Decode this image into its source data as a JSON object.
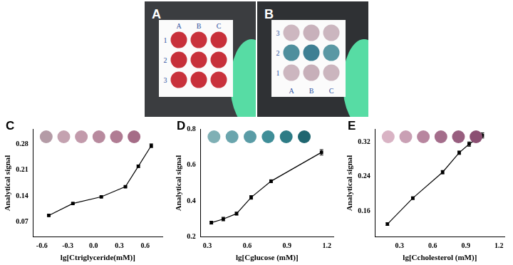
{
  "photos": [
    {
      "panel": "A",
      "column_labels": [
        "A",
        "B",
        "C"
      ],
      "row_labels": [
        "1",
        "2",
        "3"
      ],
      "wells": [
        [
          "#c8303a",
          "#c9323c",
          "#c8303a"
        ],
        [
          "#c62f39",
          "#c8313b",
          "#c7303a"
        ],
        [
          "#c8313b",
          "#c8303a",
          "#c9323c"
        ]
      ]
    },
    {
      "panel": "B",
      "column_labels": [
        "A",
        "B",
        "C"
      ],
      "row_labels": [
        "3",
        "2",
        "1"
      ],
      "wells": [
        [
          "#cdb7c0",
          "#c8b1bb",
          "#cbb6bf"
        ],
        [
          "#4f8f9d",
          "#3e7f93",
          "#5a98a4"
        ],
        [
          "#ccb6bf",
          "#c7afb9",
          "#cbb5be"
        ]
      ]
    }
  ],
  "chart_data": [
    {
      "panel": "C",
      "type": "line",
      "x_label": "lg[Ctriglyceride(mM)]",
      "y_label": "Analytical signal",
      "x": [
        -0.52,
        -0.24,
        0.09,
        0.37,
        0.52,
        0.67
      ],
      "series": [
        {
          "name": "triglyceride",
          "color": "#000000",
          "marker": "square",
          "line_style": "solid",
          "values": [
            0.088,
            0.12,
            0.138,
            0.165,
            0.22,
            0.275
          ],
          "errors": [
            0.002,
            0.002,
            0.002,
            0.002,
            0.003,
            0.005
          ]
        }
      ],
      "swatches": [
        "#b49ba6",
        "#c4a2b0",
        "#c29aab",
        "#b88a9e",
        "#b07c93",
        "#a56c87"
      ],
      "xlim": [
        -0.7,
        0.8
      ],
      "xticks": [
        -0.6,
        -0.3,
        {
          "value": 0,
          "label": "0.0"
        },
        0.3,
        0.6
      ],
      "ylim": [
        0.03,
        0.32
      ],
      "yticks": [
        0.07,
        0.14,
        0.21,
        0.28
      ],
      "grid": false
    },
    {
      "panel": "D",
      "type": "line",
      "x_label": "lg[Cglucose (mM)]",
      "y_label": "Analytical signal",
      "x": [
        0.33,
        0.42,
        0.52,
        0.63,
        0.78,
        1.16
      ],
      "series": [
        {
          "name": "glucose",
          "color": "#000000",
          "marker": "square",
          "line_style": "solid",
          "values": [
            0.28,
            0.3,
            0.33,
            0.42,
            0.51,
            0.67
          ],
          "errors": [
            0.008,
            0.01,
            0.008,
            0.01,
            0.008,
            0.015
          ]
        }
      ],
      "swatches": [
        "#7fb0b5",
        "#6aa5ad",
        "#5a9ca6",
        "#3f8e98",
        "#2e7c86",
        "#1f6670"
      ],
      "xlim": [
        0.25,
        1.25
      ],
      "xticks": [
        0.3,
        0.6,
        0.9,
        1.2
      ],
      "ylim": [
        0.2,
        0.8
      ],
      "yticks": [
        0.2,
        0.4,
        0.6,
        0.8
      ],
      "grid": false
    },
    {
      "panel": "E",
      "type": "line",
      "x_label": "lg[Ccholesterol (mM)]",
      "y_label": "Analytical signal",
      "x": [
        0.19,
        0.42,
        0.69,
        0.84,
        0.93,
        1.05
      ],
      "series": [
        {
          "name": "cholesterol",
          "color": "#000000",
          "marker": "square",
          "line_style": "solid",
          "values": [
            0.13,
            0.19,
            0.25,
            0.295,
            0.315,
            0.335
          ],
          "errors": [
            0.003,
            0.003,
            0.004,
            0.004,
            0.005,
            0.006
          ]
        }
      ],
      "swatches": [
        "#d9b3c4",
        "#c9a0b4",
        "#b8869f",
        "#a46d8b",
        "#985e7f",
        "#8b4f72"
      ],
      "xlim": [
        0.08,
        1.25
      ],
      "xticks": [
        0.3,
        0.6,
        0.9,
        1.2
      ],
      "ylim": [
        0.1,
        0.35
      ],
      "yticks": [
        0.16,
        0.24,
        0.32
      ],
      "grid": false
    }
  ]
}
